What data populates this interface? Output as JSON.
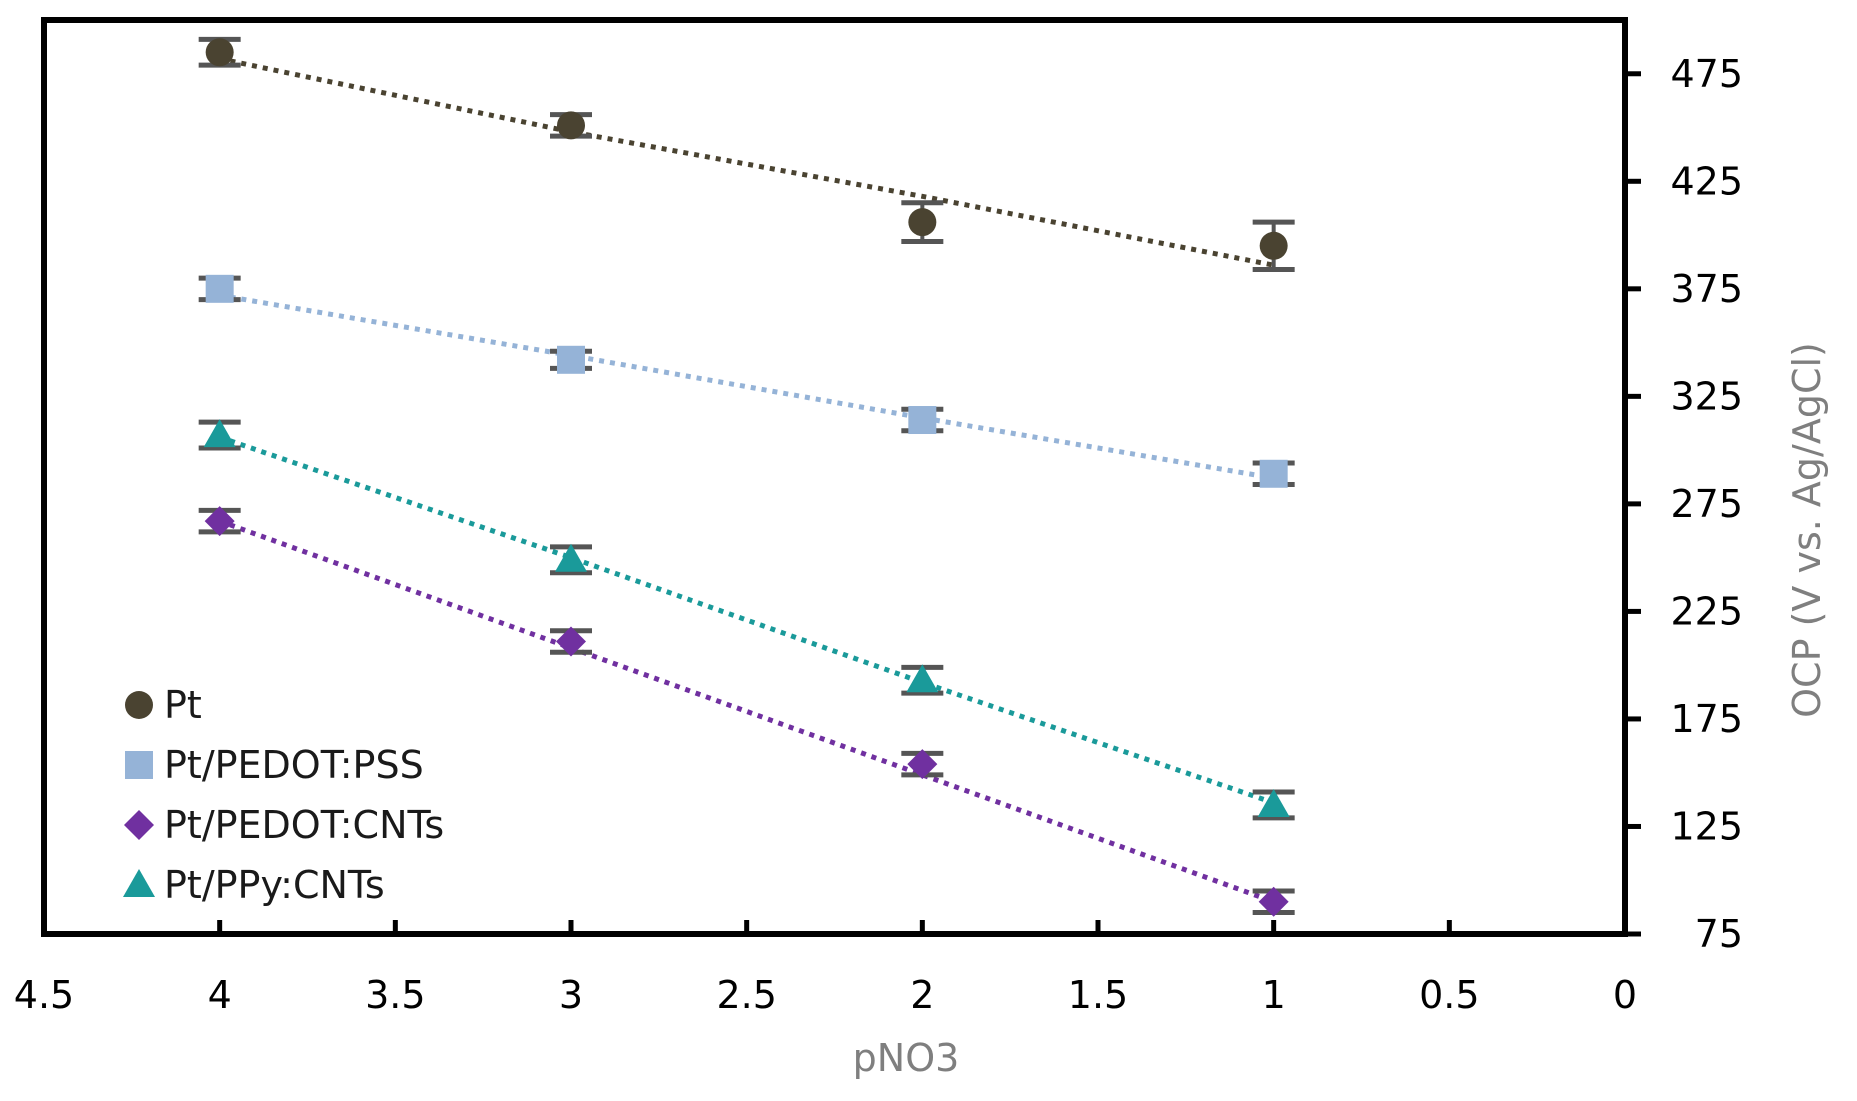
{
  "chart_data": {
    "type": "scatter",
    "title": "",
    "xlabel": "pNO3",
    "ylabel": "OCP (V vs. Ag/AgCl)",
    "xlim": [
      4.5,
      0
    ],
    "x_reversed": true,
    "ylim": [
      75,
      500
    ],
    "x_ticks": [
      4.5,
      4,
      3.5,
      3,
      2.5,
      2,
      1.5,
      1,
      0.5,
      0
    ],
    "x_tick_labels": [
      "4.5",
      "4",
      "3.5",
      "3",
      "2.5",
      "2",
      "1.5",
      "1",
      "0.5",
      "0"
    ],
    "y_ticks": [
      75,
      125,
      175,
      225,
      275,
      325,
      375,
      425,
      475
    ],
    "y_tick_labels": [
      "75",
      "125",
      "175",
      "225",
      "275",
      "325",
      "375",
      "425",
      "475"
    ],
    "y_axis_side": "right",
    "grid": false,
    "legend_position": "bottom-left",
    "trendline": "linear, dotted",
    "series": [
      {
        "name": "Pt",
        "marker": "circle",
        "color": "#4a4331",
        "x": [
          4,
          3,
          2,
          1
        ],
        "y": [
          485,
          451,
          406,
          395
        ],
        "error": [
          6,
          5,
          9,
          11
        ],
        "trend": [
          482,
          448,
          418,
          386
        ]
      },
      {
        "name": "Pt/PEDOT:PSS",
        "marker": "square",
        "color": "#95b3d7",
        "x": [
          4,
          3,
          2,
          1
        ],
        "y": [
          375,
          342,
          314,
          289
        ],
        "error": [
          5,
          4,
          5,
          5
        ],
        "trend": [
          372,
          344,
          315,
          287
        ]
      },
      {
        "name": "Pt/PEDOT:CNTs",
        "marker": "diamond",
        "color": "#7030a0",
        "x": [
          4,
          3,
          2,
          1
        ],
        "y": [
          267,
          211,
          154,
          90
        ],
        "error": [
          5,
          5,
          5,
          5
        ],
        "trend": [
          267,
          208,
          149,
          90
        ]
      },
      {
        "name": "Pt/PPy:CNTs",
        "marker": "triangle",
        "color": "#1a9a9a",
        "x": [
          4,
          3,
          2,
          1
        ],
        "y": [
          307,
          249,
          193,
          135
        ],
        "error": [
          6,
          6,
          6,
          6
        ],
        "trend": [
          306,
          250,
          192,
          136
        ]
      }
    ]
  },
  "error_bar_color": "#555555",
  "axis_color": "#000000"
}
